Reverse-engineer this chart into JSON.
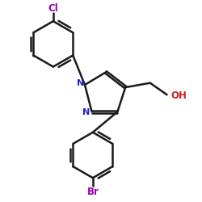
{
  "background_color": "#ffffff",
  "line_color": "#1a1a1a",
  "N_color": "#2222cc",
  "O_color": "#cc2020",
  "Cl_color": "#9900aa",
  "Br_color": "#9900aa",
  "bond_width": 1.8,
  "figsize": [
    2.5,
    2.5
  ],
  "dpi": 100,
  "xlim": [
    -1.6,
    2.4
  ],
  "ylim": [
    -2.6,
    1.7
  ]
}
